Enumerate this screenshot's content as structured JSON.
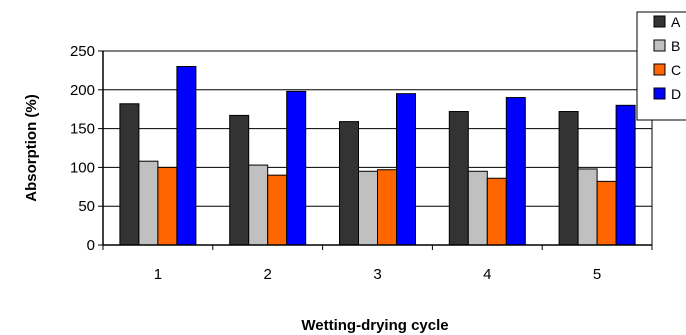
{
  "chart_data": {
    "type": "bar",
    "title": "",
    "xlabel": "Wetting-drying cycle",
    "ylabel": "Absorption (%)",
    "categories": [
      "1",
      "2",
      "3",
      "4",
      "5"
    ],
    "ylim": [
      0,
      250
    ],
    "yticks": [
      "0",
      "50",
      "100",
      "150",
      "200",
      "250"
    ],
    "grid": true,
    "legend_position": "top-right",
    "series": [
      {
        "name": "A",
        "color": "#333333",
        "values": [
          182,
          167,
          159,
          172,
          172
        ]
      },
      {
        "name": "B",
        "color": "#c0c0c0",
        "values": [
          108,
          103,
          95,
          95,
          98
        ]
      },
      {
        "name": "C",
        "color": "#ff6600",
        "values": [
          100,
          90,
          97,
          86,
          82
        ]
      },
      {
        "name": "D",
        "color": "#0000ff",
        "values": [
          230,
          198,
          195,
          190,
          180
        ]
      }
    ]
  }
}
